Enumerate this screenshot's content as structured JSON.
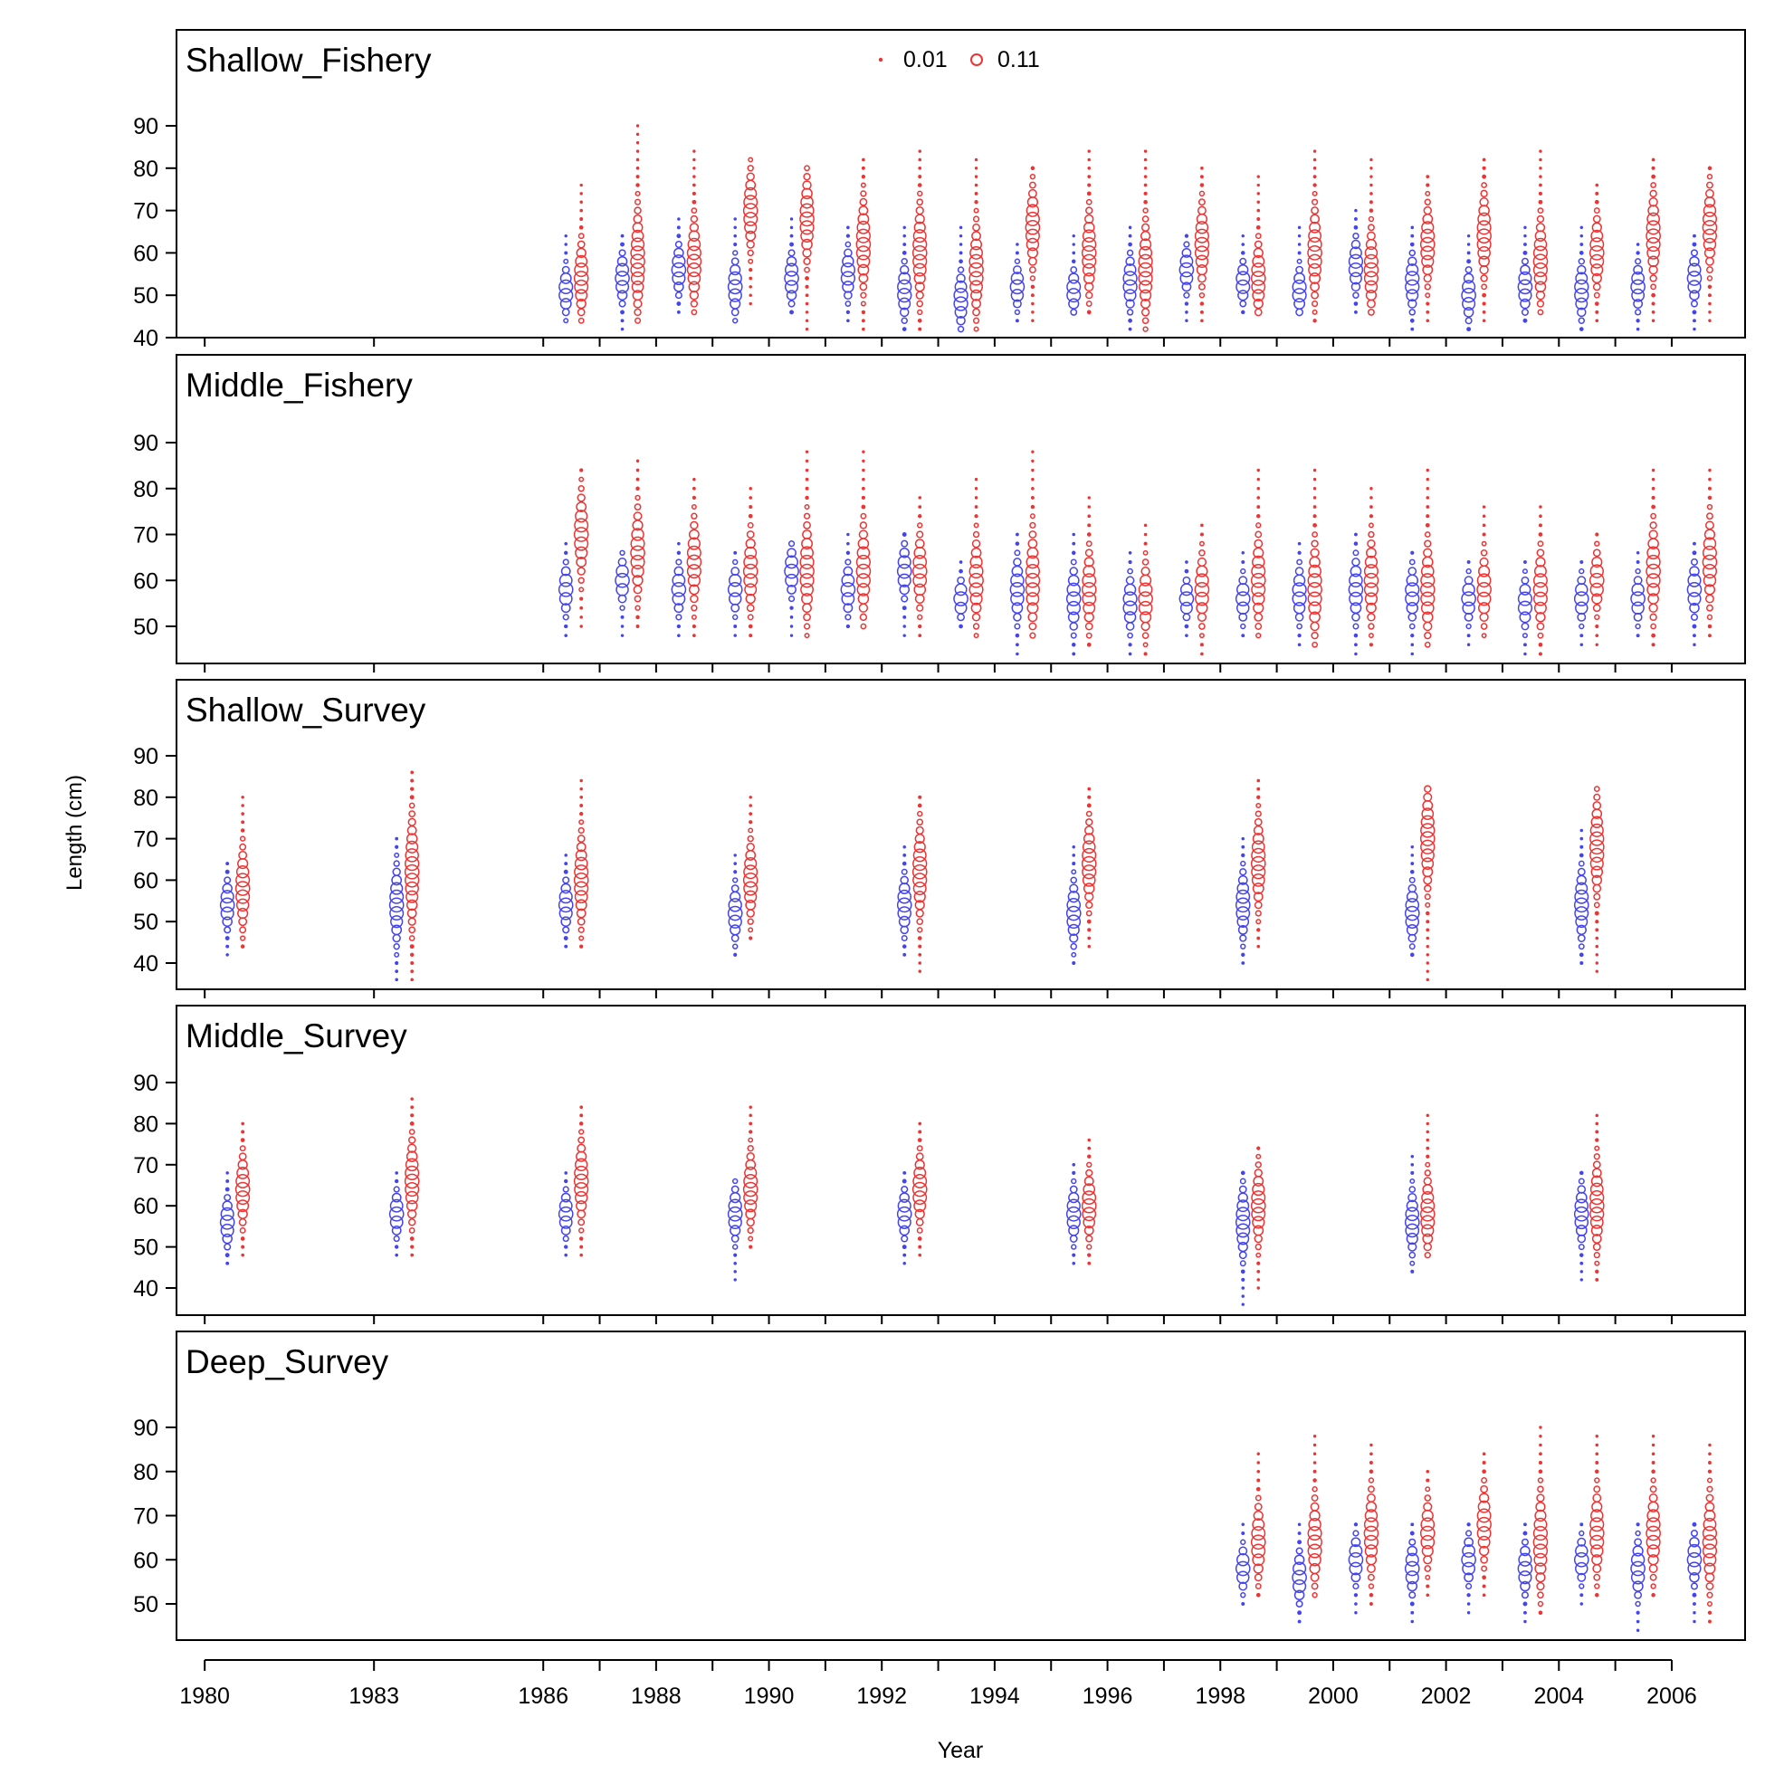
{
  "chart_data": {
    "type": "scatter",
    "subtype": "bubble",
    "xlabel": "Year",
    "ylabel": "Length (cm)",
    "xlim": [
      1979.5,
      2007.3
    ],
    "x_ticks": [
      1980,
      1983,
      1986,
      1988,
      1990,
      1992,
      1994,
      1996,
      1998,
      2000,
      2002,
      2004,
      2006
    ],
    "x_minor_ticks": [
      1987,
      1989,
      1991,
      1993,
      1995,
      1997,
      1999,
      2001,
      2003,
      2005
    ],
    "legend": {
      "placement": "top-center",
      "entries": [
        {
          "label": "0.01",
          "value": 0.01
        },
        {
          "label": "0.11",
          "value": 0.11
        }
      ]
    },
    "colors": {
      "female": "#4444ee",
      "male": "#ee3333"
    },
    "panels": [
      {
        "name": "Shallow_Fishery",
        "ylim": [
          40,
          90
        ],
        "yticks": [
          40,
          50,
          60,
          70,
          80,
          90
        ],
        "years": [
          1986,
          1987,
          1988,
          1989,
          1990,
          1991,
          1992,
          1993,
          1994,
          1995,
          1996,
          1997,
          1998,
          1999,
          2000,
          2001,
          2002,
          2003,
          2004,
          2005,
          2006
        ],
        "female_ranges": [
          [
            44,
            64
          ],
          [
            42,
            64
          ],
          [
            46,
            68
          ],
          [
            44,
            68
          ],
          [
            46,
            68
          ],
          [
            44,
            66
          ],
          [
            42,
            66
          ],
          [
            42,
            66
          ],
          [
            44,
            62
          ],
          [
            46,
            64
          ],
          [
            42,
            66
          ],
          [
            44,
            64
          ],
          [
            46,
            64
          ],
          [
            46,
            66
          ],
          [
            46,
            70
          ],
          [
            42,
            66
          ],
          [
            42,
            64
          ],
          [
            44,
            66
          ],
          [
            42,
            66
          ],
          [
            42,
            62
          ],
          [
            42,
            64
          ]
        ],
        "female_peaks": [
          51,
          54,
          56,
          52,
          54,
          55,
          51,
          49,
          52,
          51,
          53,
          56,
          53,
          51,
          57,
          53,
          50,
          52,
          51,
          52,
          54
        ],
        "male_ranges": [
          [
            44,
            76
          ],
          [
            44,
            90
          ],
          [
            46,
            84
          ],
          [
            48,
            82
          ],
          [
            42,
            80
          ],
          [
            42,
            82
          ],
          [
            42,
            84
          ],
          [
            42,
            82
          ],
          [
            44,
            80
          ],
          [
            46,
            84
          ],
          [
            42,
            84
          ],
          [
            44,
            80
          ],
          [
            46,
            78
          ],
          [
            44,
            84
          ],
          [
            46,
            82
          ],
          [
            44,
            78
          ],
          [
            44,
            82
          ],
          [
            46,
            84
          ],
          [
            44,
            76
          ],
          [
            44,
            82
          ],
          [
            44,
            80
          ]
        ],
        "male_peaks": [
          54,
          58,
          58,
          70,
          68,
          62,
          60,
          56,
          66,
          60,
          56,
          62,
          54,
          60,
          56,
          62,
          64,
          58,
          60,
          64,
          66
        ]
      },
      {
        "name": "Middle_Fishery",
        "ylim": [
          42,
          90
        ],
        "yticks": [
          50,
          60,
          70,
          80,
          90
        ],
        "years": [
          1986,
          1987,
          1988,
          1989,
          1990,
          1991,
          1992,
          1993,
          1994,
          1995,
          1996,
          1997,
          1998,
          1999,
          2000,
          2001,
          2002,
          2003,
          2004,
          2005,
          2006
        ],
        "female_ranges": [
          [
            48,
            68
          ],
          [
            48,
            66
          ],
          [
            48,
            68
          ],
          [
            48,
            66
          ],
          [
            48,
            68
          ],
          [
            50,
            70
          ],
          [
            48,
            70
          ],
          [
            50,
            64
          ],
          [
            44,
            70
          ],
          [
            44,
            70
          ],
          [
            44,
            66
          ],
          [
            48,
            64
          ],
          [
            48,
            66
          ],
          [
            46,
            68
          ],
          [
            44,
            70
          ],
          [
            44,
            66
          ],
          [
            46,
            64
          ],
          [
            44,
            64
          ],
          [
            46,
            64
          ],
          [
            48,
            66
          ],
          [
            46,
            68
          ]
        ],
        "female_peaks": [
          58,
          60,
          58,
          58,
          62,
          58,
          62,
          56,
          58,
          56,
          55,
          56,
          56,
          57,
          58,
          57,
          56,
          55,
          56,
          56,
          58
        ],
        "male_ranges": [
          [
            50,
            84
          ],
          [
            50,
            86
          ],
          [
            48,
            82
          ],
          [
            48,
            80
          ],
          [
            48,
            88
          ],
          [
            50,
            88
          ],
          [
            48,
            78
          ],
          [
            48,
            82
          ],
          [
            48,
            88
          ],
          [
            46,
            78
          ],
          [
            44,
            72
          ],
          [
            44,
            72
          ],
          [
            48,
            84
          ],
          [
            46,
            84
          ],
          [
            46,
            80
          ],
          [
            46,
            84
          ],
          [
            48,
            76
          ],
          [
            44,
            76
          ],
          [
            46,
            70
          ],
          [
            46,
            84
          ],
          [
            48,
            84
          ]
        ],
        "male_peaks": [
          70,
          66,
          64,
          62,
          62,
          62,
          62,
          60,
          60,
          58,
          56,
          58,
          60,
          58,
          60,
          58,
          58,
          58,
          60,
          62,
          64
        ]
      },
      {
        "name": "Shallow_Survey",
        "ylim": [
          40,
          90
        ],
        "yticks": [
          40,
          50,
          60,
          70,
          80,
          90
        ],
        "years": [
          1980,
          1983,
          1986,
          1989,
          1992,
          1995,
          1998,
          2001,
          2004
        ],
        "female_ranges": [
          [
            42,
            64
          ],
          [
            36,
            70
          ],
          [
            44,
            66
          ],
          [
            42,
            66
          ],
          [
            42,
            68
          ],
          [
            40,
            68
          ],
          [
            40,
            70
          ],
          [
            42,
            68
          ],
          [
            40,
            72
          ]
        ],
        "female_peaks": [
          54,
          54,
          54,
          52,
          54,
          52,
          54,
          52,
          54
        ],
        "male_ranges": [
          [
            44,
            80
          ],
          [
            36,
            86
          ],
          [
            44,
            84
          ],
          [
            46,
            80
          ],
          [
            38,
            80
          ],
          [
            44,
            82
          ],
          [
            44,
            84
          ],
          [
            36,
            82
          ],
          [
            38,
            82
          ]
        ],
        "male_peaks": [
          58,
          62,
          60,
          60,
          62,
          64,
          64,
          70,
          68
        ]
      },
      {
        "name": "Middle_Survey",
        "ylim": [
          40,
          90
        ],
        "yticks": [
          40,
          50,
          60,
          70,
          80,
          90
        ],
        "years": [
          1980,
          1983,
          1986,
          1989,
          1992,
          1995,
          1998,
          2001,
          2004
        ],
        "female_ranges": [
          [
            46,
            68
          ],
          [
            48,
            68
          ],
          [
            48,
            68
          ],
          [
            42,
            66
          ],
          [
            46,
            68
          ],
          [
            46,
            70
          ],
          [
            36,
            68
          ],
          [
            44,
            72
          ],
          [
            42,
            68
          ]
        ],
        "female_peaks": [
          56,
          58,
          58,
          58,
          58,
          58,
          56,
          56,
          58
        ],
        "male_ranges": [
          [
            48,
            80
          ],
          [
            48,
            86
          ],
          [
            48,
            84
          ],
          [
            50,
            84
          ],
          [
            48,
            80
          ],
          [
            46,
            76
          ],
          [
            40,
            74
          ],
          [
            48,
            82
          ],
          [
            42,
            82
          ]
        ],
        "male_peaks": [
          64,
          66,
          66,
          64,
          64,
          60,
          60,
          58,
          60
        ]
      },
      {
        "name": "Deep_Survey",
        "ylim": [
          42,
          90
        ],
        "yticks": [
          50,
          60,
          70,
          80,
          90
        ],
        "years": [
          1998,
          1999,
          2000,
          2001,
          2002,
          2003,
          2004,
          2005,
          2006
        ],
        "female_ranges": [
          [
            50,
            68
          ],
          [
            46,
            68
          ],
          [
            48,
            68
          ],
          [
            46,
            68
          ],
          [
            48,
            68
          ],
          [
            46,
            68
          ],
          [
            50,
            68
          ],
          [
            44,
            68
          ],
          [
            46,
            68
          ]
        ],
        "female_peaks": [
          58,
          56,
          60,
          58,
          60,
          58,
          60,
          58,
          60
        ],
        "male_ranges": [
          [
            52,
            84
          ],
          [
            52,
            88
          ],
          [
            50,
            86
          ],
          [
            52,
            80
          ],
          [
            52,
            84
          ],
          [
            48,
            90
          ],
          [
            52,
            88
          ],
          [
            52,
            88
          ],
          [
            46,
            86
          ]
        ],
        "male_peaks": [
          64,
          64,
          66,
          66,
          68,
          64,
          66,
          66,
          64
        ]
      }
    ]
  }
}
